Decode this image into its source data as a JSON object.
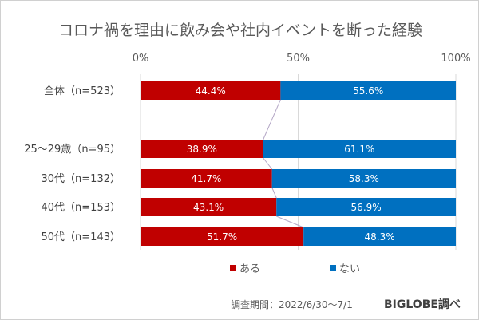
{
  "chart_data": {
    "type": "bar",
    "stacked": true,
    "orientation": "horizontal",
    "title": "コロナ禍を理由に飲み会や社内イベントを断った経験",
    "categories": [
      "全体（n=523）",
      "25～29歳（n=95）",
      "30代（n=132）",
      "40代（n=153）",
      "50代（n=143）"
    ],
    "series": [
      {
        "name": "ある",
        "color": "#C00000",
        "values": [
          44.4,
          38.9,
          41.7,
          43.1,
          51.7
        ]
      },
      {
        "name": "ない",
        "color": "#0070C0",
        "values": [
          55.6,
          61.1,
          58.3,
          56.9,
          48.3
        ]
      }
    ],
    "value_labels": [
      [
        "44.4%",
        "38.9%",
        "41.7%",
        "43.1%",
        "51.7%"
      ],
      [
        "55.6%",
        "61.1%",
        "58.3%",
        "56.9%",
        "48.3%"
      ]
    ],
    "xlim": [
      0,
      100
    ],
    "x_ticks": [
      "0%",
      "50%",
      "100%"
    ],
    "grid": true,
    "series_lines": true,
    "legend_position": "bottom"
  },
  "footer": {
    "period": "調査期間：2022/6/30～7/1",
    "source": "BIGLOBE調べ"
  }
}
